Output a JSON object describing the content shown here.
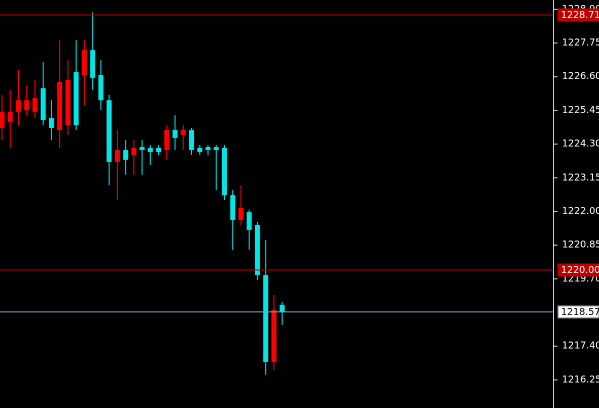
{
  "chart_data": {
    "type": "candlestick",
    "ylim": [
      1215.29,
      1229.22
    ],
    "yticks": [
      {
        "value": 1228.9,
        "label": "1228.90"
      },
      1227.75,
      {
        "value": 1226.6,
        "label": "1226.60"
      },
      1225.45,
      {
        "value": 1224.3,
        "label": "1224.30"
      },
      1223.15,
      {
        "value": 1222,
        "label": "1222.00"
      },
      1220.85,
      {
        "value": 1219.7,
        "label": "1219.70"
      },
      {
        "value": 1217.4,
        "label": "1217.40"
      },
      1216.25
    ],
    "up_color": "#ff0000",
    "down_color": "#00e5e5",
    "open": [
      1224.85,
      1225.05,
      1225.4,
      1225.46,
      1225.4,
      1226.21,
      1225.19,
      1224.78,
      1224.95,
      1226.76,
      1226.66,
      1227.51,
      1226.66,
      1225.8,
      1223.69,
      1224.1,
      1223.93,
      1224.2,
      1224.17,
      1224.17,
      1224.1,
      1224.78,
      1224.61,
      1224.78,
      1224.17,
      1224.2,
      1224.2,
      1224.17,
      1222.56,
      1221.71,
      1221.98,
      1221.54,
      1219.83,
      1216.86,
      1218.81
    ],
    "high": [
      1225.98,
      1226.15,
      1226.83,
      1226.32,
      1226.49,
      1227.1,
      1225.8,
      1227.85,
      1227.17,
      1227.85,
      1227.85,
      1228.8,
      1227.17,
      1225.98,
      1224.78,
      1224.44,
      1224.44,
      1224.44,
      1224.27,
      1224.27,
      1224.95,
      1225.29,
      1224.95,
      1224.85,
      1224.27,
      1224.27,
      1224.27,
      1224.27,
      1222.73,
      1222.9,
      1222.05,
      1221.64,
      1221.03,
      1219.15,
      1218.91
    ],
    "low": [
      1224.44,
      1224.17,
      1224.95,
      1225.29,
      1225.19,
      1224.95,
      1224.44,
      1224.17,
      1224.61,
      1224.78,
      1225.63,
      1226.15,
      1225.46,
      1222.9,
      1222.39,
      1223.25,
      1223.25,
      1223.25,
      1223.59,
      1223.93,
      1223.76,
      1224.1,
      1224.1,
      1223.93,
      1223.93,
      1223.93,
      1222.73,
      1222.39,
      1220.69,
      1221.54,
      1220.69,
      1219.66,
      1216.42,
      1216.59,
      1218.13
    ],
    "close": [
      1225.4,
      1225.4,
      1225.8,
      1225.8,
      1225.87,
      1225.12,
      1224.85,
      1226.42,
      1226.49,
      1224.95,
      1227.51,
      1226.56,
      1225.8,
      1223.69,
      1224.1,
      1223.76,
      1224.17,
      1224.1,
      1224.03,
      1224.03,
      1224.78,
      1224.51,
      1224.78,
      1224.1,
      1224.03,
      1224.1,
      1224.1,
      1222.56,
      1221.71,
      1222.12,
      1221.37,
      1219.83,
      1216.86,
      1218.64,
      1218.57
    ],
    "hlines": [
      {
        "value": 1228.71,
        "color": "#c00000",
        "label_color": "#c00000"
      },
      {
        "value": 1220,
        "label": "1220.00",
        "color": "#c00000",
        "label_color": "#c00000"
      },
      {
        "value": 1218.57,
        "color": "#8a9cc8",
        "label_color": "#ffffff"
      }
    ]
  }
}
